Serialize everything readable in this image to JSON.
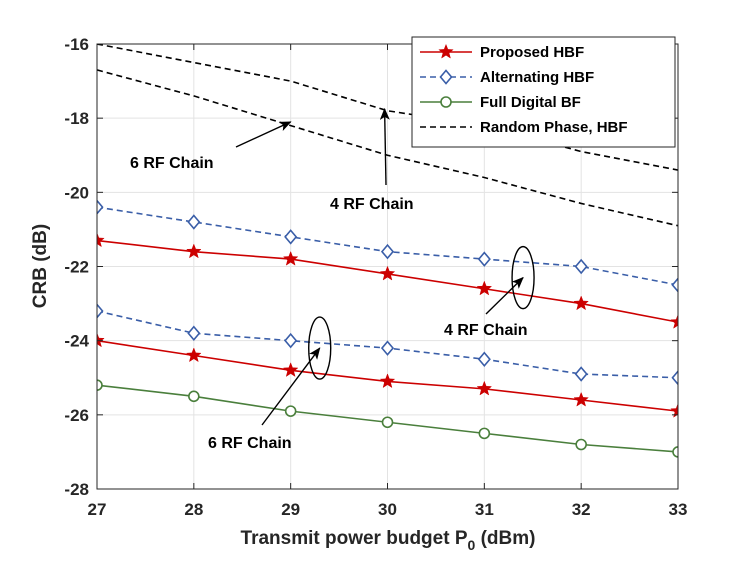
{
  "chart_data": {
    "type": "line",
    "title": "",
    "xlabel": "Transmit power budget P",
    "xlabel_sub": "0",
    "xlabel_unit": " (dBm)",
    "ylabel": "CRB (dB)",
    "xlim": [
      27,
      33
    ],
    "ylim": [
      -28,
      -16
    ],
    "xticks": [
      27,
      28,
      29,
      30,
      31,
      32,
      33
    ],
    "yticks": [
      -16,
      -18,
      -20,
      -22,
      -24,
      -26,
      -28
    ],
    "grid": true,
    "legend_position": "top-right",
    "x": [
      27,
      28,
      29,
      30,
      31,
      32,
      33
    ],
    "series": [
      {
        "name": "Proposed HBF",
        "group": "4 RF Chain",
        "color": "#cc0000",
        "marker": "star",
        "style": "solid",
        "values": [
          -21.3,
          -21.6,
          -21.8,
          -22.2,
          -22.6,
          -23.0,
          -23.5
        ]
      },
      {
        "name": "Proposed HBF",
        "group": "6 RF Chain",
        "color": "#cc0000",
        "marker": "star",
        "style": "solid",
        "values": [
          -24.0,
          -24.4,
          -24.8,
          -25.1,
          -25.3,
          -25.6,
          -25.9
        ]
      },
      {
        "name": "Alternating HBF",
        "group": "4 RF Chain",
        "color": "#3a5ea8",
        "marker": "diamond",
        "style": "dashed",
        "values": [
          -20.4,
          -20.8,
          -21.2,
          -21.6,
          -21.8,
          -22.0,
          -22.5
        ]
      },
      {
        "name": "Alternating HBF",
        "group": "6 RF Chain",
        "color": "#3a5ea8",
        "marker": "diamond",
        "style": "dashed",
        "values": [
          -23.2,
          -23.8,
          -24.0,
          -24.2,
          -24.5,
          -24.9,
          -25.0
        ]
      },
      {
        "name": "Full Digital BF",
        "group": "",
        "color": "#4a7f3c",
        "marker": "circle",
        "style": "solid",
        "values": [
          -25.2,
          -25.5,
          -25.9,
          -26.2,
          -26.5,
          -26.8,
          -27.0
        ]
      },
      {
        "name": "Random Phase, HBF",
        "group": "4 RF Chain",
        "color": "#000000",
        "marker": "none",
        "style": "dashed",
        "values": [
          -16.0,
          -16.5,
          -17.0,
          -17.8,
          -18.2,
          -18.9,
          -19.4
        ]
      },
      {
        "name": "Random Phase, HBF",
        "group": "6 RF Chain",
        "color": "#000000",
        "marker": "none",
        "style": "dashed",
        "values": [
          -16.7,
          -17.4,
          -18.2,
          -19.0,
          -19.6,
          -20.3,
          -20.9
        ]
      }
    ],
    "legend": [
      "Proposed HBF",
      "Alternating HBF",
      "Full Digital BF",
      "Random Phase, HBF"
    ],
    "annotations": [
      {
        "text": "6 RF Chain",
        "target": [
          29,
          -18.1
        ],
        "kind": "arrow"
      },
      {
        "text": "4 RF Chain",
        "target": [
          29.97,
          -17.75
        ],
        "kind": "arrow"
      },
      {
        "text": "4 RF Chain",
        "target": [
          31.4,
          -22.3
        ],
        "kind": "ellipse"
      },
      {
        "text": "6 RF Chain",
        "target": [
          29.3,
          -24.2
        ],
        "kind": "ellipse"
      }
    ]
  }
}
